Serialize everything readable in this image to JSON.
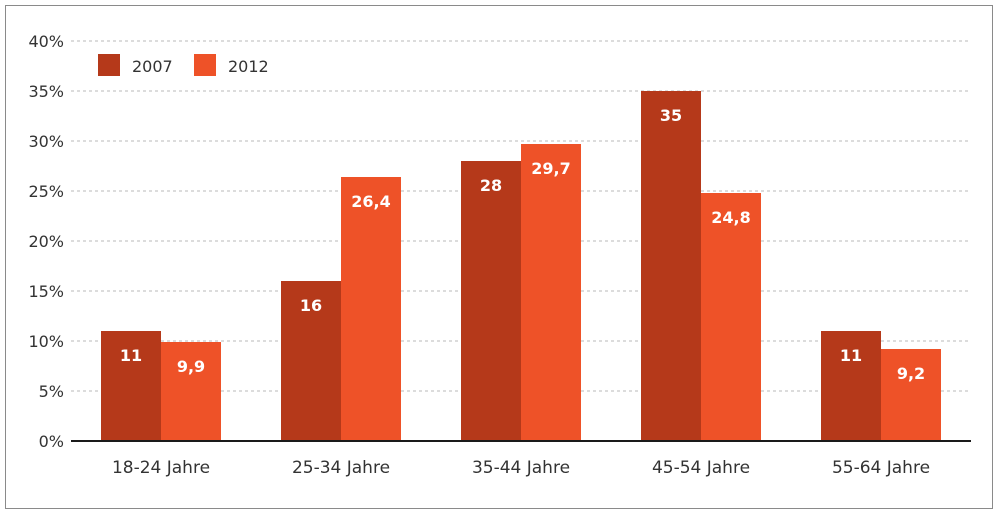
{
  "chart_data": {
    "type": "bar",
    "categories": [
      "18-24 Jahre",
      "25-34 Jahre",
      "35-44 Jahre",
      "45-54 Jahre",
      "55-64 Jahre"
    ],
    "series": [
      {
        "name": "2007",
        "values": [
          11,
          16,
          28,
          35,
          11
        ],
        "labels": [
          "11",
          "16",
          "28",
          "35",
          "11"
        ],
        "color": "#b5391a"
      },
      {
        "name": "2012",
        "values": [
          9.9,
          26.4,
          29.7,
          24.8,
          9.2
        ],
        "labels": [
          "9,9",
          "26,4",
          "29,7",
          "24,8",
          "9,2"
        ],
        "color": "#ee5228"
      }
    ],
    "ylim": [
      0,
      40
    ],
    "yticks": [
      0,
      5,
      10,
      15,
      20,
      25,
      30,
      35,
      40
    ],
    "ytick_labels": [
      "0%",
      "5%",
      "10%",
      "15%",
      "20%",
      "25%",
      "30%",
      "35%",
      "40%"
    ],
    "grid": true,
    "legend": "top-left",
    "title": "",
    "xlabel": "",
    "ylabel": ""
  }
}
